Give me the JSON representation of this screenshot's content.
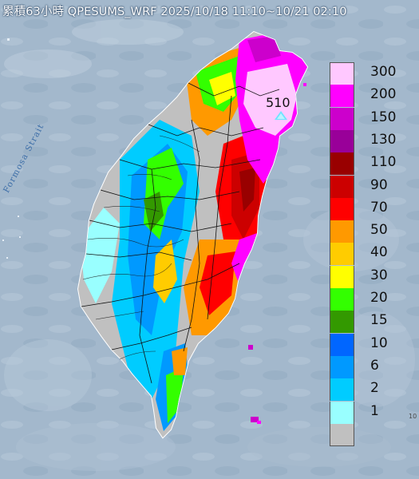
{
  "title": "累積63小時 QPESUMS_WRF 2025/10/18 11:10~10/21 02:10",
  "sea_label": "Formosa Strait",
  "max_value": "510",
  "edge_note": "10",
  "legend": [
    {
      "label": "300",
      "color": "#ffc8ff"
    },
    {
      "label": "200",
      "color": "#ff00ff"
    },
    {
      "label": "150",
      "color": "#cc00cc"
    },
    {
      "label": "130",
      "color": "#990099"
    },
    {
      "label": "110",
      "color": "#990000"
    },
    {
      "label": "90",
      "color": "#cc0000"
    },
    {
      "label": "70",
      "color": "#ff0000"
    },
    {
      "label": "50",
      "color": "#ff9900"
    },
    {
      "label": "40",
      "color": "#ffcc00"
    },
    {
      "label": "30",
      "color": "#ffff00"
    },
    {
      "label": "20",
      "color": "#33ff00"
    },
    {
      "label": "15",
      "color": "#339900"
    },
    {
      "label": "10",
      "color": "#0066ff"
    },
    {
      "label": "6",
      "color": "#0099ff"
    },
    {
      "label": "2",
      "color": "#00ccff"
    },
    {
      "label": "1",
      "color": "#99ffff"
    },
    {
      "label": "",
      "color": "#c0c0c0"
    }
  ],
  "colors": {
    "sea": "#9fb4c9",
    "county_border": "#111111",
    "river": "#1a1a1a"
  }
}
